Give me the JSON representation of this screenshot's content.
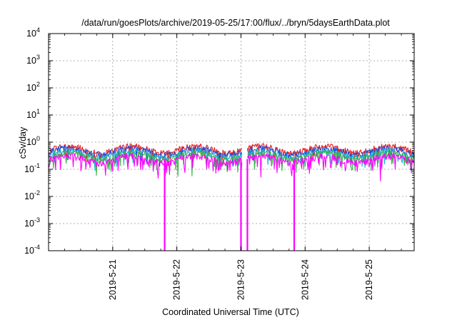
{
  "chart_data": {
    "type": "line",
    "title": "/data/run/goesPlots/archive/2019-05-25/17:00/flux/../bryn/5daysEarthData.plot",
    "xlabel": "Coordinated Universal Time (UTC)",
    "ylabel": "cSv/day",
    "y_scale": "log",
    "ylim": [
      0.0001,
      10000
    ],
    "xlim": [
      0,
      5.7
    ],
    "y_ticks": [
      {
        "base": "10",
        "exp": "-4",
        "value": 0.0001
      },
      {
        "base": "10",
        "exp": "-3",
        "value": 0.001
      },
      {
        "base": "10",
        "exp": "-2",
        "value": 0.01
      },
      {
        "base": "10",
        "exp": "-1",
        "value": 0.1
      },
      {
        "base": "10",
        "exp": "0",
        "value": 1
      },
      {
        "base": "10",
        "exp": "1",
        "value": 10
      },
      {
        "base": "10",
        "exp": "2",
        "value": 100
      },
      {
        "base": "10",
        "exp": "3",
        "value": 1000
      },
      {
        "base": "10",
        "exp": "4",
        "value": 10000
      }
    ],
    "x_ticks": [
      {
        "label": "2019-5-21",
        "value": 1
      },
      {
        "label": "2019-5-22",
        "value": 2
      },
      {
        "label": "2019-5-23",
        "value": 3
      },
      {
        "label": "2019-5-24",
        "value": 4
      },
      {
        "label": "2019-5-25",
        "value": 5
      }
    ],
    "grid": true,
    "legend": "none",
    "series": [
      {
        "color": "#e8191e",
        "level": 0.55
      },
      {
        "color": "#1f4fd6",
        "level": 0.46
      },
      {
        "color": "#17b7d2",
        "level": 0.36
      },
      {
        "color": "#3cb34a",
        "level": 0.31
      },
      {
        "color": "#ff00ff",
        "level": 0.24
      }
    ],
    "data_gap_x": [
      3.02,
      3.1
    ],
    "dropouts_x": [
      1.81,
      3.0,
      3.1,
      3.83
    ]
  }
}
